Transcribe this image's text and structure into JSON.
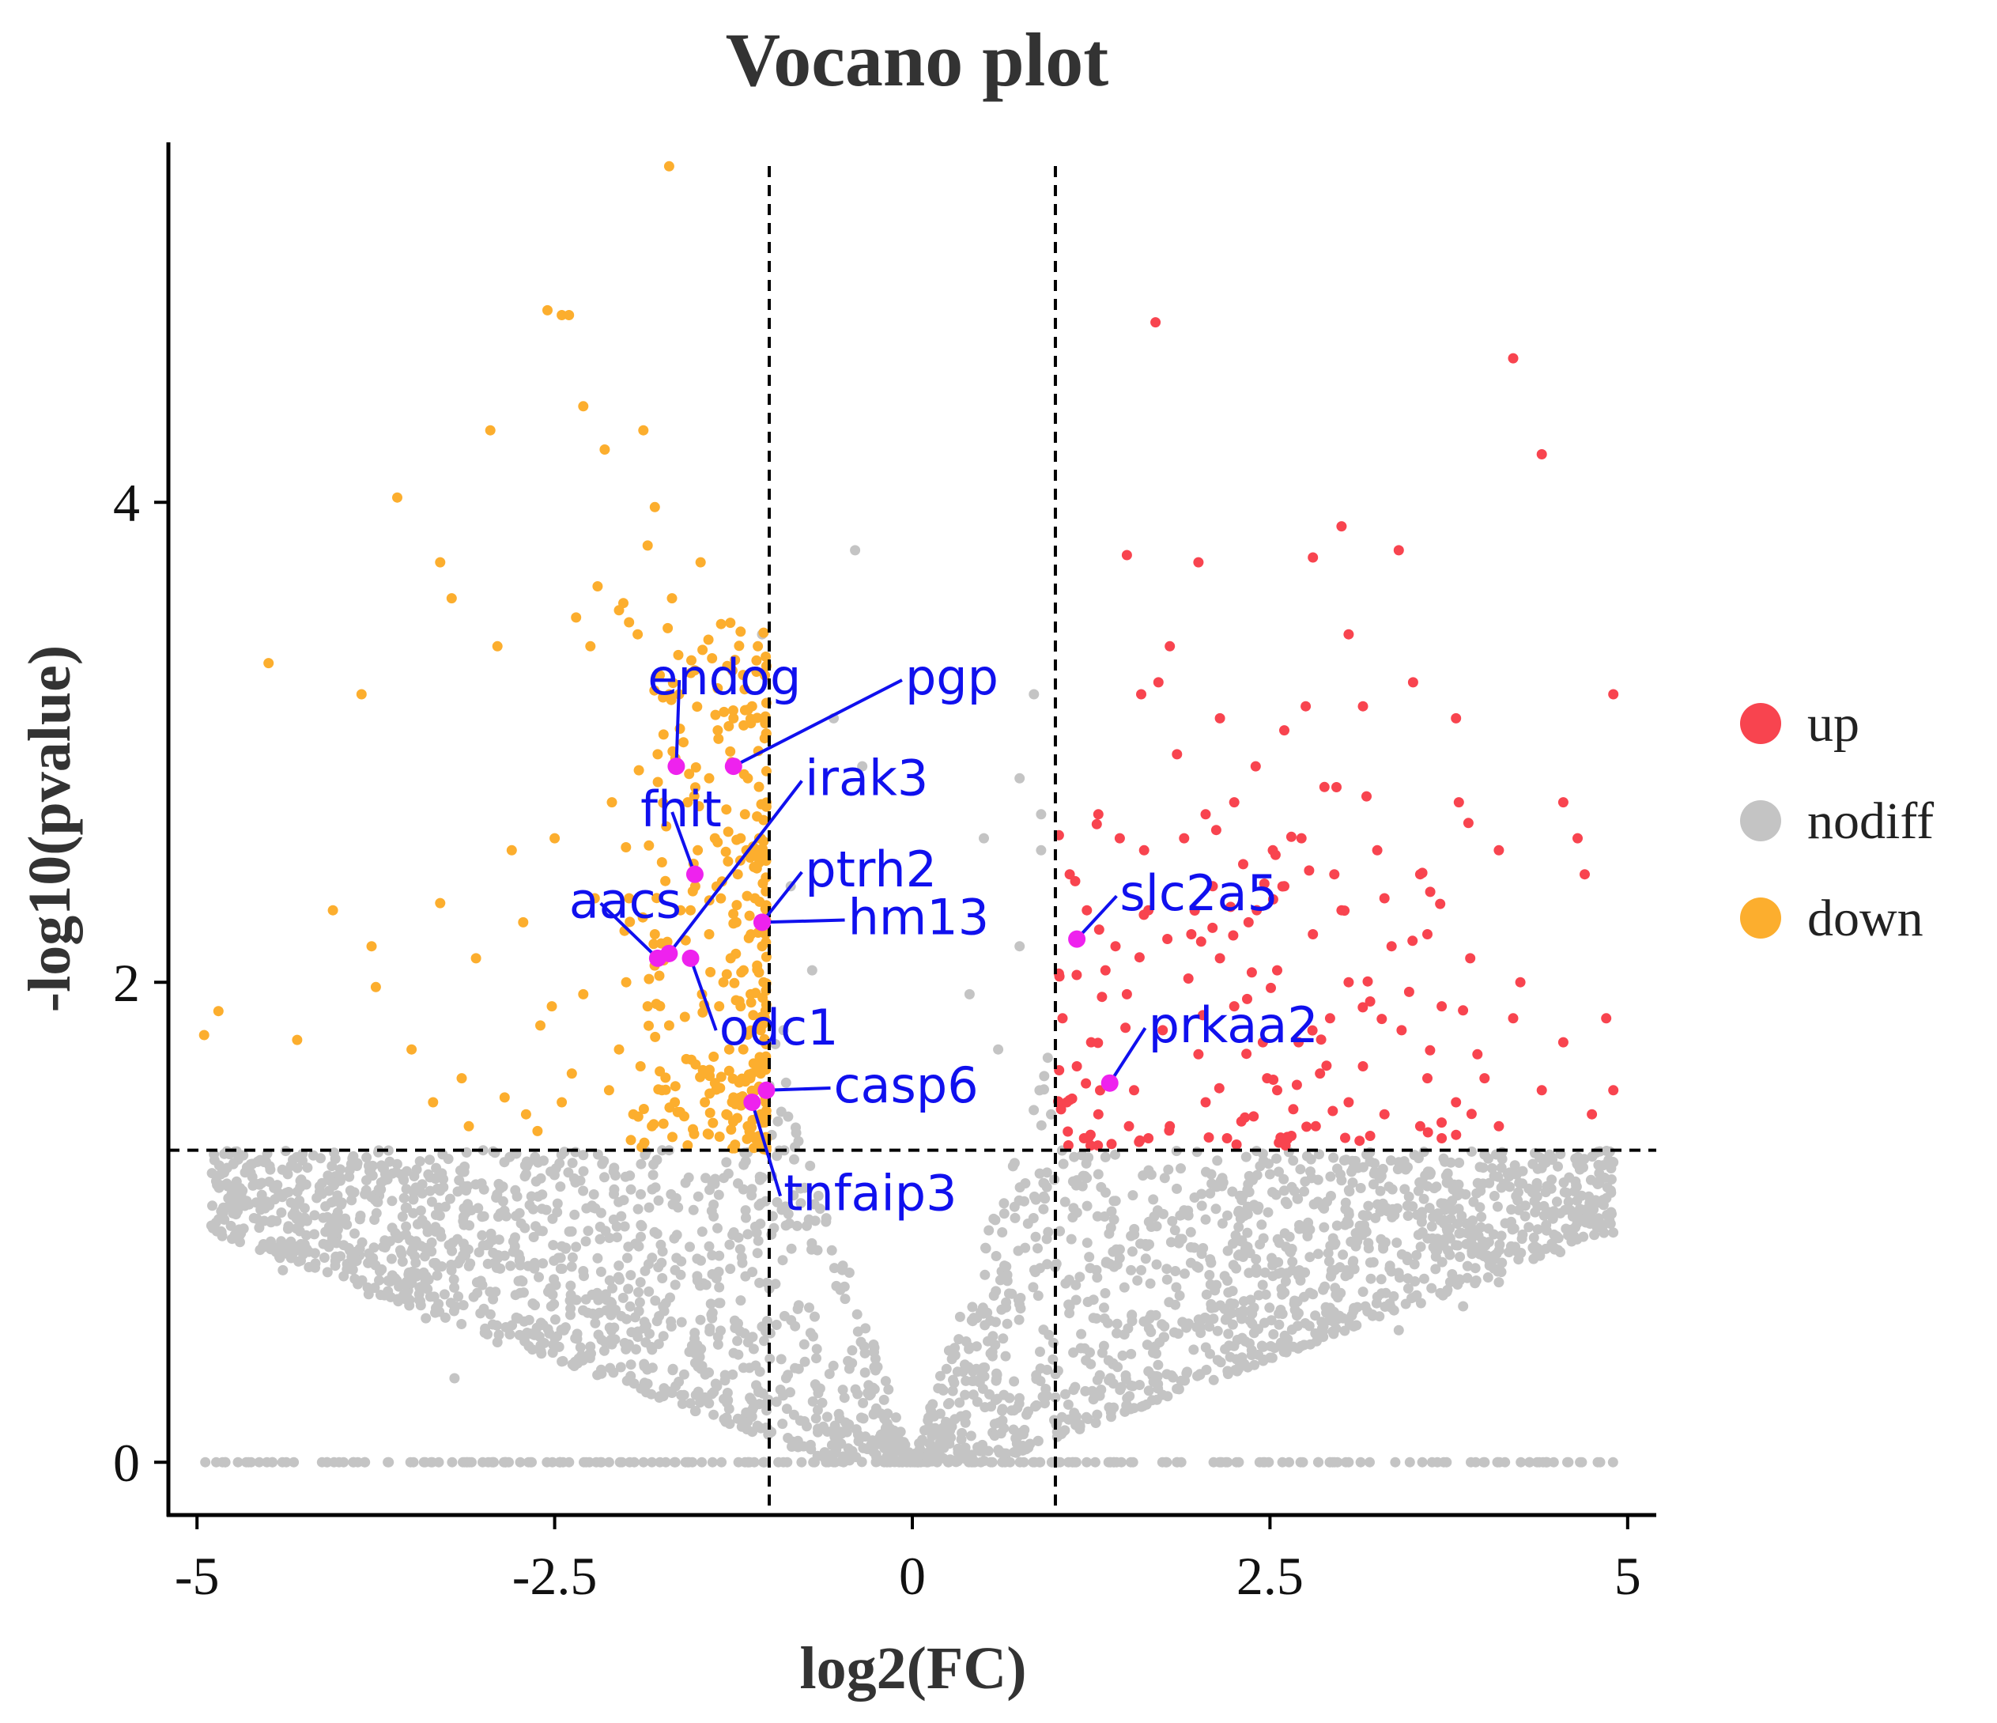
{
  "chart_data": {
    "type": "scatter",
    "title": "Vocano plot",
    "xlabel": "log2(FC)",
    "ylabel": "-log10(pvalue)",
    "xlim": [
      -5.2,
      5.2
    ],
    "ylim": [
      -0.22,
      5.5
    ],
    "x_ticks": [
      {
        "value": -5,
        "label": "-5"
      },
      {
        "value": -2.5,
        "label": "-2.5"
      },
      {
        "value": 0,
        "label": "0"
      },
      {
        "value": 2.5,
        "label": "2.5"
      },
      {
        "value": 5,
        "label": "5"
      }
    ],
    "y_ticks": [
      {
        "value": 0,
        "label": "0"
      },
      {
        "value": 2,
        "label": "2"
      },
      {
        "value": 4,
        "label": "4"
      }
    ],
    "thresholds": {
      "fc_left": -1,
      "fc_right": 1,
      "pvalue_line": 1.3
    },
    "legend": {
      "position": "right",
      "entries": [
        {
          "label": "up",
          "color": "#f8444f"
        },
        {
          "label": "nodiff",
          "color": "#c4c4c4"
        },
        {
          "label": "down",
          "color": "#fcae2e"
        }
      ]
    },
    "highlight_color": "#ee22ee",
    "label_color": "#1010ee",
    "labeled_genes": [
      {
        "name": "endog",
        "x": -1.65,
        "y": 2.9,
        "label_x": -1.85,
        "label_y": 3.2
      },
      {
        "name": "pgp",
        "x": -1.25,
        "y": 2.9,
        "label_x": -0.05,
        "label_y": 3.2
      },
      {
        "name": "fhit",
        "x": -1.52,
        "y": 2.45,
        "label_x": -1.9,
        "label_y": 2.65
      },
      {
        "name": "irak3",
        "x": -1.7,
        "y": 2.12,
        "label_x": -0.75,
        "label_y": 2.78
      },
      {
        "name": "aacs",
        "x": -1.78,
        "y": 2.1,
        "label_x": -2.4,
        "label_y": 2.27
      },
      {
        "name": "ptrh2",
        "x": -1.05,
        "y": 2.25,
        "label_x": -0.75,
        "label_y": 2.4
      },
      {
        "name": "hm13",
        "x": -1.05,
        "y": 2.25,
        "label_x": -0.45,
        "label_y": 2.2
      },
      {
        "name": "odc1",
        "x": -1.55,
        "y": 2.1,
        "label_x": -1.35,
        "label_y": 1.74
      },
      {
        "name": "casp6",
        "x": -1.02,
        "y": 1.55,
        "label_x": -0.55,
        "label_y": 1.5
      },
      {
        "name": "tnfaip3",
        "x": -1.12,
        "y": 1.5,
        "label_x": -0.9,
        "label_y": 1.05
      },
      {
        "name": "slc2a5",
        "x": 1.15,
        "y": 2.18,
        "label_x": 1.45,
        "label_y": 2.3
      },
      {
        "name": "prkaa2",
        "x": 1.38,
        "y": 1.58,
        "label_x": 1.65,
        "label_y": 1.75
      }
    ],
    "points_down": [
      [
        -4.95,
        1.78
      ],
      [
        -4.85,
        1.88
      ],
      [
        -4.5,
        3.33
      ],
      [
        -4.3,
        1.76
      ],
      [
        -4.05,
        2.3
      ],
      [
        -3.85,
        3.2
      ],
      [
        -3.78,
        2.15
      ],
      [
        -3.75,
        1.98
      ],
      [
        -3.6,
        4.02
      ],
      [
        -3.5,
        1.72
      ],
      [
        -3.35,
        1.5
      ],
      [
        -3.3,
        3.75
      ],
      [
        -3.3,
        2.33
      ],
      [
        -3.22,
        3.6
      ],
      [
        -3.15,
        1.6
      ],
      [
        -3.1,
        1.4
      ],
      [
        -3.05,
        2.1
      ],
      [
        -2.95,
        4.3
      ],
      [
        -2.9,
        3.4
      ],
      [
        -2.85,
        1.52
      ],
      [
        -2.8,
        2.55
      ],
      [
        -2.72,
        2.25
      ],
      [
        -2.6,
        1.82
      ],
      [
        -2.55,
        4.8
      ],
      [
        -2.5,
        2.6
      ],
      [
        -2.45,
        4.78
      ],
      [
        -2.4,
        4.78
      ],
      [
        -2.35,
        3.52
      ],
      [
        -2.3,
        4.4
      ],
      [
        -2.25,
        3.4
      ],
      [
        -2.2,
        3.65
      ],
      [
        -2.15,
        4.22
      ],
      [
        -2.1,
        2.75
      ],
      [
        -2.05,
        3.55
      ],
      [
        -2.02,
        3.58
      ],
      [
        -1.98,
        3.5
      ],
      [
        -1.92,
        3.45
      ],
      [
        -1.88,
        4.3
      ],
      [
        -1.85,
        3.82
      ],
      [
        -1.8,
        3.98
      ],
      [
        -1.75,
        2.5
      ],
      [
        -1.7,
        5.4
      ],
      [
        -1.68,
        3.6
      ],
      [
        -1.62,
        2.3
      ],
      [
        -1.6,
        3.0
      ],
      [
        -1.52,
        3.3
      ],
      [
        -1.48,
        3.75
      ],
      [
        -1.42,
        2.2
      ],
      [
        -1.4,
        3.35
      ],
      [
        -1.38,
        2.6
      ],
      [
        -1.35,
        1.9
      ],
      [
        -1.32,
        2.0
      ],
      [
        -1.3,
        2.72
      ],
      [
        -1.28,
        1.72
      ],
      [
        -1.25,
        3.1
      ],
      [
        -1.22,
        2.45
      ],
      [
        -1.2,
        1.9
      ],
      [
        -1.18,
        2.05
      ],
      [
        -1.15,
        2.85
      ],
      [
        -1.12,
        1.62
      ],
      [
        -1.1,
        2.35
      ],
      [
        -1.08,
        3.4
      ],
      [
        -1.06,
        1.45
      ],
      [
        -1.05,
        2.15
      ],
      [
        -2.62,
        1.38
      ],
      [
        -2.45,
        1.5
      ],
      [
        -2.3,
        1.95
      ],
      [
        -2.0,
        2.0
      ],
      [
        -1.95,
        1.45
      ],
      [
        -1.9,
        1.65
      ],
      [
        -1.85,
        1.9
      ],
      [
        -1.8,
        2.2
      ],
      [
        -1.75,
        1.55
      ],
      [
        -1.72,
        2.65
      ],
      [
        -1.7,
        1.82
      ],
      [
        -1.58,
        1.68
      ],
      [
        -1.55,
        2.3
      ],
      [
        -1.45,
        1.5
      ],
      [
        -1.42,
        2.85
      ],
      [
        -1.38,
        1.58
      ],
      [
        -1.33,
        2.42
      ],
      [
        -1.27,
        2.1
      ],
      [
        -1.25,
        1.52
      ],
      [
        -1.2,
        2.6
      ],
      [
        -1.15,
        1.4
      ],
      [
        -1.13,
        1.95
      ],
      [
        -1.1,
        1.35
      ],
      [
        -1.07,
        2.6
      ],
      [
        -1.06,
        1.8
      ],
      [
        -1.04,
        2.0
      ],
      [
        -2.7,
        1.45
      ],
      [
        -2.52,
        1.9
      ],
      [
        -2.38,
        1.62
      ],
      [
        -2.22,
        2.35
      ],
      [
        -2.12,
        1.55
      ],
      [
        -2.05,
        1.72
      ],
      [
        -1.98,
        2.35
      ],
      [
        -1.82,
        1.4
      ],
      [
        -1.78,
        2.95
      ],
      [
        -1.66,
        1.5
      ],
      [
        -1.63,
        3.2
      ],
      [
        -1.57,
        2.75
      ],
      [
        -1.5,
        2.55
      ],
      [
        -1.47,
        1.95
      ],
      [
        -1.36,
        3.05
      ],
      [
        -1.3,
        1.45
      ],
      [
        -1.23,
        2.25
      ],
      [
        -1.17,
        2.7
      ],
      [
        -1.12,
        3.15
      ],
      [
        -1.06,
        1.62
      ]
    ],
    "points_up": [
      [
        1.7,
        4.75
      ],
      [
        4.2,
        4.6
      ],
      [
        4.4,
        4.2
      ],
      [
        1.5,
        3.78
      ],
      [
        2.0,
        3.75
      ],
      [
        2.8,
        3.77
      ],
      [
        3.0,
        3.9
      ],
      [
        3.4,
        3.8
      ],
      [
        1.8,
        3.4
      ],
      [
        3.05,
        3.45
      ],
      [
        1.6,
        3.2
      ],
      [
        1.72,
        3.25
      ],
      [
        2.15,
        3.1
      ],
      [
        2.4,
        2.9
      ],
      [
        2.6,
        3.05
      ],
      [
        2.75,
        3.15
      ],
      [
        3.15,
        3.15
      ],
      [
        3.5,
        3.25
      ],
      [
        3.8,
        3.1
      ],
      [
        4.9,
        3.2
      ],
      [
        1.3,
        2.7
      ],
      [
        1.45,
        2.6
      ],
      [
        1.62,
        2.55
      ],
      [
        1.85,
        2.95
      ],
      [
        2.05,
        2.7
      ],
      [
        2.25,
        2.75
      ],
      [
        2.52,
        2.55
      ],
      [
        2.72,
        2.6
      ],
      [
        2.95,
        2.45
      ],
      [
        3.25,
        2.55
      ],
      [
        3.55,
        2.45
      ],
      [
        3.82,
        2.75
      ],
      [
        4.1,
        2.55
      ],
      [
        4.55,
        2.75
      ],
      [
        4.65,
        2.6
      ],
      [
        1.1,
        2.45
      ],
      [
        1.22,
        2.3
      ],
      [
        1.42,
        2.15
      ],
      [
        1.65,
        2.3
      ],
      [
        1.95,
        2.2
      ],
      [
        2.15,
        2.1
      ],
      [
        2.35,
        2.25
      ],
      [
        2.55,
        2.05
      ],
      [
        2.8,
        2.2
      ],
      [
        3.05,
        2.0
      ],
      [
        3.3,
        2.35
      ],
      [
        3.6,
        2.2
      ],
      [
        3.9,
        2.1
      ],
      [
        4.25,
        2.0
      ],
      [
        4.7,
        2.45
      ],
      [
        1.05,
        1.85
      ],
      [
        1.25,
        1.75
      ],
      [
        1.5,
        1.95
      ],
      [
        1.75,
        1.8
      ],
      [
        2.0,
        1.7
      ],
      [
        2.25,
        1.9
      ],
      [
        2.48,
        1.6
      ],
      [
        2.7,
        1.75
      ],
      [
        2.92,
        1.85
      ],
      [
        3.15,
        1.65
      ],
      [
        3.42,
        1.8
      ],
      [
        3.7,
        1.9
      ],
      [
        3.95,
        1.7
      ],
      [
        4.2,
        1.85
      ],
      [
        4.55,
        1.75
      ],
      [
        4.85,
        1.85
      ],
      [
        1.08,
        1.5
      ],
      [
        1.3,
        1.45
      ],
      [
        1.55,
        1.55
      ],
      [
        1.8,
        1.4
      ],
      [
        2.05,
        1.5
      ],
      [
        2.3,
        1.42
      ],
      [
        2.55,
        1.55
      ],
      [
        2.82,
        1.4
      ],
      [
        3.05,
        1.5
      ],
      [
        3.3,
        1.45
      ],
      [
        3.55,
        1.4
      ],
      [
        3.8,
        1.5
      ],
      [
        4.1,
        1.4
      ],
      [
        4.4,
        1.55
      ],
      [
        4.75,
        1.45
      ],
      [
        4.9,
        1.55
      ],
      [
        1.2,
        1.35
      ],
      [
        1.65,
        1.35
      ],
      [
        2.2,
        1.35
      ],
      [
        2.65,
        1.36
      ],
      [
        3.2,
        1.36
      ],
      [
        3.7,
        1.35
      ],
      [
        1.9,
        2.6
      ],
      [
        2.6,
        2.4
      ],
      [
        3.35,
        2.15
      ],
      [
        3.2,
        1.92
      ],
      [
        2.45,
        1.75
      ],
      [
        1.35,
        2.05
      ],
      [
        2.85,
        1.62
      ],
      [
        3.6,
        1.6
      ],
      [
        4.0,
        1.6
      ],
      [
        1.15,
        1.65
      ],
      [
        2.1,
        2.4
      ],
      [
        3.0,
        2.3
      ]
    ],
    "points_nodiff": [
      [
        -1.05,
        3.45
      ],
      [
        -0.4,
        3.8
      ],
      [
        -0.55,
        3.1
      ],
      [
        -0.35,
        2.9
      ],
      [
        0.75,
        2.85
      ],
      [
        0.9,
        2.7
      ],
      [
        0.5,
        2.6
      ],
      [
        -0.85,
        2.4
      ],
      [
        -0.7,
        2.05
      ],
      [
        -0.9,
        1.8
      ],
      [
        0.4,
        1.95
      ],
      [
        0.75,
        2.15
      ],
      [
        0.9,
        2.55
      ],
      [
        0.85,
        3.2
      ],
      [
        0.6,
        1.72
      ],
      [
        -4.4,
        0.8
      ],
      [
        -3.8,
        0.7
      ],
      [
        -3.4,
        0.6
      ],
      [
        -3.2,
        0.35
      ],
      [
        -2.9,
        0.5
      ],
      [
        -2.7,
        1.2
      ],
      [
        -2.45,
        0.9
      ],
      [
        -2.2,
        0.85
      ],
      [
        -1.9,
        0.75
      ],
      [
        -1.65,
        1.1
      ],
      [
        -1.4,
        0.6
      ],
      [
        -1.3,
        1.25
      ],
      [
        -1.15,
        0.95
      ],
      [
        4.6,
        1.05
      ],
      [
        4.35,
        0.9
      ],
      [
        4.1,
        0.75
      ],
      [
        3.85,
        0.65
      ],
      [
        3.6,
        1.15
      ],
      [
        3.4,
        0.55
      ],
      [
        3.1,
        0.9
      ],
      [
        2.8,
        0.7
      ],
      [
        2.5,
        1.2
      ],
      [
        2.2,
        0.6
      ],
      [
        1.9,
        1.05
      ],
      [
        1.6,
        0.8
      ],
      [
        1.3,
        1.2
      ],
      [
        1.1,
        0.65
      ],
      [
        4.9,
        1.25
      ],
      [
        -3.0,
        1.3
      ],
      [
        -2.3,
        1.28
      ],
      [
        -1.7,
        1.3
      ]
    ]
  }
}
